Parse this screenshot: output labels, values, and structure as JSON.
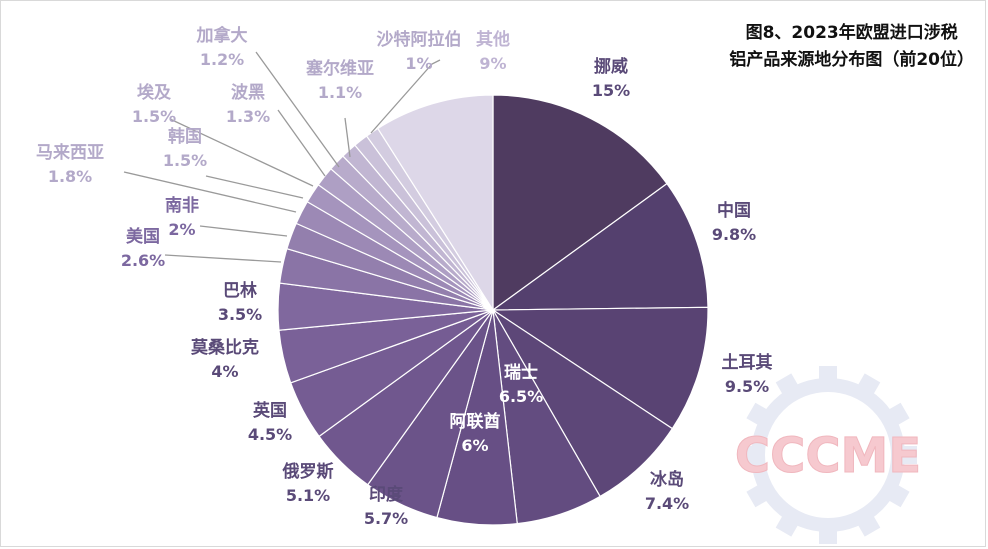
{
  "chart_data": {
    "type": "pie",
    "title_line1": "图8、2023年欧盟进口涉税",
    "title_line2": "铝产品来源地分布图（前20位）",
    "watermark": "CCCME",
    "series": [
      {
        "name": "挪威",
        "value": 15,
        "label": "15%",
        "color": "#4f3b60"
      },
      {
        "name": "中国",
        "value": 9.8,
        "label": "9.8%",
        "color": "#54406e"
      },
      {
        "name": "土耳其",
        "value": 9.5,
        "label": "9.5%",
        "color": "#594373"
      },
      {
        "name": "冰岛",
        "value": 7.4,
        "label": "7.4%",
        "color": "#5d4778"
      },
      {
        "name": "瑞士",
        "value": 6.5,
        "label": "6.5%",
        "color": "#634c80"
      },
      {
        "name": "阿联酋",
        "value": 6,
        "label": "6%",
        "color": "#674f85"
      },
      {
        "name": "印度",
        "value": 5.7,
        "label": "5.7%",
        "color": "#6b5389"
      },
      {
        "name": "俄罗斯",
        "value": 5.1,
        "label": "5.1%",
        "color": "#70578e"
      },
      {
        "name": "英国",
        "value": 4.5,
        "label": "4.5%",
        "color": "#755c93"
      },
      {
        "name": "莫桑比克",
        "value": 4,
        "label": "4%",
        "color": "#7a6198"
      },
      {
        "name": "巴林",
        "value": 3.5,
        "label": "3.5%",
        "color": "#80689e"
      },
      {
        "name": "美国",
        "value": 2.6,
        "label": "2.6%",
        "color": "#8a74a6"
      },
      {
        "name": "南非",
        "value": 2,
        "label": "2%",
        "color": "#937fad"
      },
      {
        "name": "马来西亚",
        "value": 1.8,
        "label": "1.8%",
        "color": "#9c89b5"
      },
      {
        "name": "韩国",
        "value": 1.5,
        "label": "1.5%",
        "color": "#a594bd"
      },
      {
        "name": "埃及",
        "value": 1.5,
        "label": "1.5%",
        "color": "#ae9fc4"
      },
      {
        "name": "波黑",
        "value": 1.3,
        "label": "1.3%",
        "color": "#b8abcb"
      },
      {
        "name": "加拿大",
        "value": 1.2,
        "label": "1.2%",
        "color": "#c1b6d2"
      },
      {
        "name": "塞尔维亚",
        "value": 1.1,
        "label": "1.1%",
        "color": "#cac1d9"
      },
      {
        "name": "沙特阿拉伯",
        "value": 1,
        "label": "1%",
        "color": "#d3cce0"
      },
      {
        "name": "其他",
        "value": 9,
        "label": "9%",
        "color": "#ddd7e8"
      }
    ]
  }
}
